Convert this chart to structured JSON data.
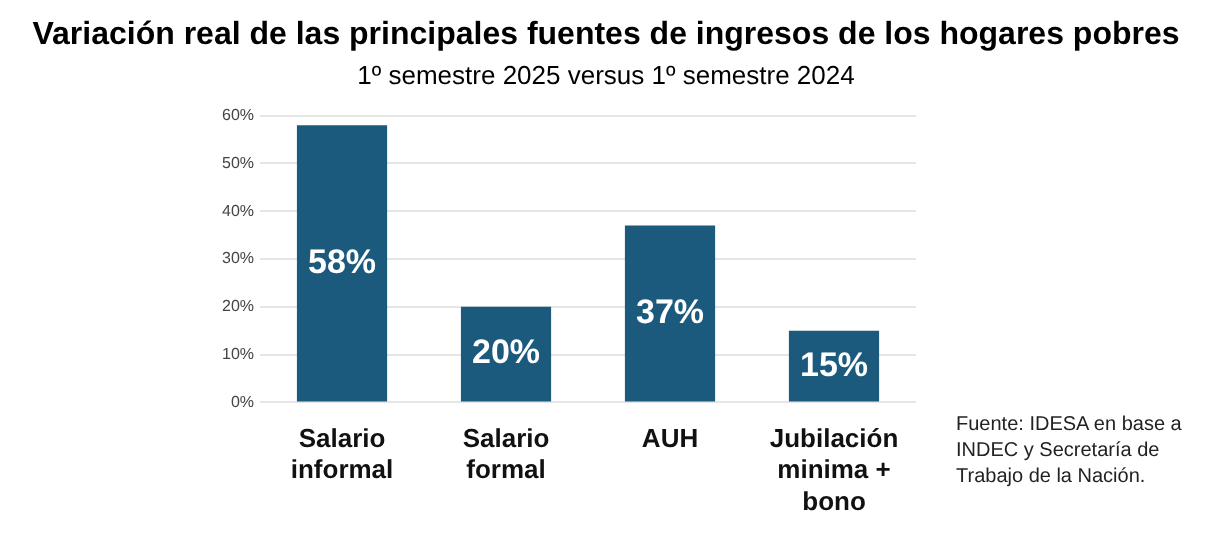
{
  "chart_data": {
    "type": "bar",
    "title": "Variación real de las principales fuentes de ingresos de los hogares pobres",
    "subtitle": "1º semestre 2025 versus 1º semestre 2024",
    "categories": [
      "Salario informal",
      "Salario formal",
      "AUH",
      "Jubilación minima + bono"
    ],
    "values": [
      58,
      20,
      37,
      15
    ],
    "value_labels": [
      "58%",
      "20%",
      "37%",
      "15%"
    ],
    "color": "#1b5a7d",
    "ylim": [
      0,
      60
    ],
    "yticks": [
      {
        "value": 0,
        "label": "0%"
      },
      {
        "value": 10,
        "label": "10%"
      },
      {
        "value": 20,
        "label": "20%"
      },
      {
        "value": 30,
        "label": "30%"
      },
      {
        "value": 40,
        "label": "40%"
      },
      {
        "value": 50,
        "label": "50%"
      },
      {
        "value": 60,
        "label": "60%"
      }
    ],
    "grid": "y",
    "legend": false,
    "annotations": [
      "Fuente: IDESA en base a INDEC y Secretaría de Trabajo de la Nación."
    ]
  }
}
